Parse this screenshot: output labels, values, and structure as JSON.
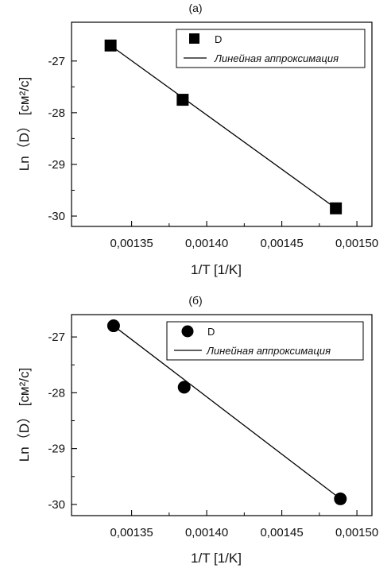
{
  "chart_data": [
    {
      "type": "scatter",
      "panel_label": "(а)",
      "marker": "square",
      "x": [
        0.001336,
        0.001384,
        0.001486
      ],
      "y": [
        -26.7,
        -27.75,
        -29.85
      ],
      "fit_line": {
        "x": [
          0.001336,
          0.001486
        ],
        "y": [
          -26.7,
          -29.85
        ]
      },
      "xlim": [
        0.00131,
        0.00151
      ],
      "ylim": [
        -30.2,
        -26.25
      ],
      "x_ticks": [
        0.00135,
        0.0014,
        0.00145,
        0.0015
      ],
      "x_tick_labels": [
        "0,00135",
        "0,00140",
        "0,00145",
        "0,00150"
      ],
      "y_ticks": [
        -27,
        -28,
        -29,
        -30
      ],
      "y_tick_labels": [
        "-27",
        "-28",
        "-29",
        "-30"
      ],
      "xlabel": "1/T [1/K]",
      "ylabel": "Ln（D） [см²/с]",
      "legend": {
        "position": "top-right",
        "point_label": "D",
        "line_label": "Линейная аппроксимация"
      },
      "grid": false
    },
    {
      "type": "scatter",
      "panel_label": "(б)",
      "marker": "circle",
      "x": [
        0.001338,
        0.001385,
        0.001489
      ],
      "y": [
        -26.8,
        -27.9,
        -29.9
      ],
      "fit_line": {
        "x": [
          0.001338,
          0.001489
        ],
        "y": [
          -26.8,
          -29.9
        ]
      },
      "xlim": [
        0.00131,
        0.00151
      ],
      "ylim": [
        -30.2,
        -26.6
      ],
      "x_ticks": [
        0.00135,
        0.0014,
        0.00145,
        0.0015
      ],
      "x_tick_labels": [
        "0,00135",
        "0,00140",
        "0,00145",
        "0,00150"
      ],
      "y_ticks": [
        -27,
        -28,
        -29,
        -30
      ],
      "y_tick_labels": [
        "-27",
        "-28",
        "-29",
        "-30"
      ],
      "xlabel": "1/T [1/K]",
      "ylabel": "Ln（D） [см²/с]",
      "legend": {
        "position": "top-right",
        "point_label": "D",
        "line_label": "Линейная аппроксимация"
      },
      "grid": false
    }
  ]
}
